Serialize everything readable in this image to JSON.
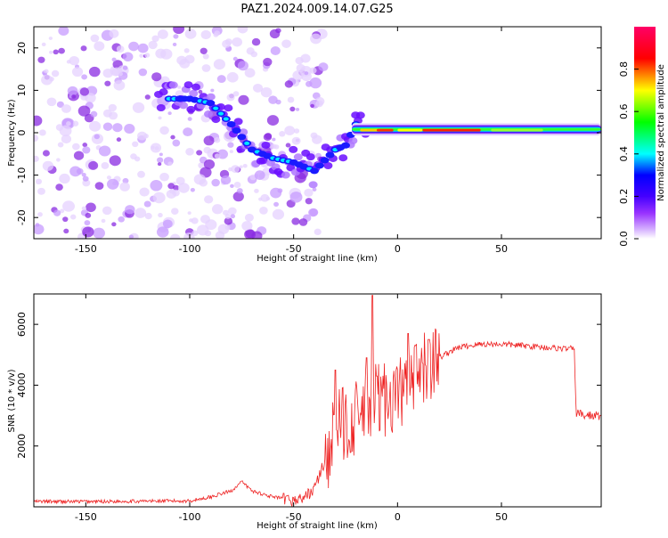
{
  "title": "PAZ1.2024.009.14.07.G25",
  "colors": {
    "snr_line": "#ee2222",
    "frame": "#000000",
    "background": "#ffffff"
  },
  "chart_data": [
    {
      "type": "heatmap",
      "xlabel": "Height of straight line (km)",
      "ylabel": "Frequency (Hz)",
      "xlim": [
        -175,
        98
      ],
      "ylim": [
        -25,
        25
      ],
      "xticks": [
        -150,
        -100,
        -50,
        0,
        50
      ],
      "yticks": [
        -20,
        -10,
        0,
        10,
        20
      ],
      "colorbar": {
        "label": "Normalized spectral amplitude",
        "range": [
          0,
          1
        ],
        "ticks": [
          0.0,
          0.2,
          0.4,
          0.6,
          0.8
        ],
        "colormap": [
          "#ffffff",
          "#d9b8ff",
          "#9933ff",
          "#4400ff",
          "#0000ff",
          "#00ffff",
          "#00ff00",
          "#ffff00",
          "#ff0000",
          "#ff0066"
        ]
      },
      "ridge": {
        "x": [
          -110,
          -100,
          -90,
          -80,
          -70,
          -60,
          -50,
          -40,
          -30,
          -25,
          -20,
          -10,
          0,
          10,
          20,
          50,
          80,
          98
        ],
        "frequency": [
          8,
          8,
          7,
          2,
          -4,
          -6,
          -7,
          -9,
          -4,
          -3,
          2,
          1,
          1,
          0,
          0,
          0,
          1,
          0
        ]
      }
    },
    {
      "type": "line",
      "xlabel": "Height of straight line (km)",
      "ylabel": "SNR (10 * v/v)",
      "xlim": [
        -175,
        98
      ],
      "ylim": [
        0,
        7000
      ],
      "xticks": [
        -150,
        -100,
        -50,
        0,
        50
      ],
      "yticks": [
        2000,
        4000,
        6000
      ],
      "series": [
        {
          "x": [
            -175,
            -150,
            -125,
            -100,
            -90,
            -80,
            -75,
            -70,
            -60,
            -50,
            -45,
            -40,
            -35,
            -30,
            -25,
            -20,
            -15,
            -10,
            -5,
            0,
            5,
            10,
            15,
            20,
            25,
            30,
            40,
            50,
            60,
            70,
            80,
            85,
            86,
            90,
            95,
            98
          ],
          "values": [
            150,
            150,
            160,
            170,
            300,
            500,
            800,
            500,
            300,
            200,
            300,
            600,
            1500,
            2500,
            2800,
            2900,
            3200,
            3500,
            3600,
            3700,
            3900,
            4200,
            4600,
            4900,
            5100,
            5250,
            5350,
            5350,
            5300,
            5250,
            5200,
            5200,
            3100,
            3000,
            3000,
            3000
          ],
          "peaks": [
            [
              -12,
              6950
            ],
            [
              -15,
              4900
            ],
            [
              -10,
              4300
            ],
            [
              5,
              5700
            ],
            [
              15,
              5500
            ],
            [
              -30,
              4500
            ]
          ]
        }
      ]
    }
  ]
}
